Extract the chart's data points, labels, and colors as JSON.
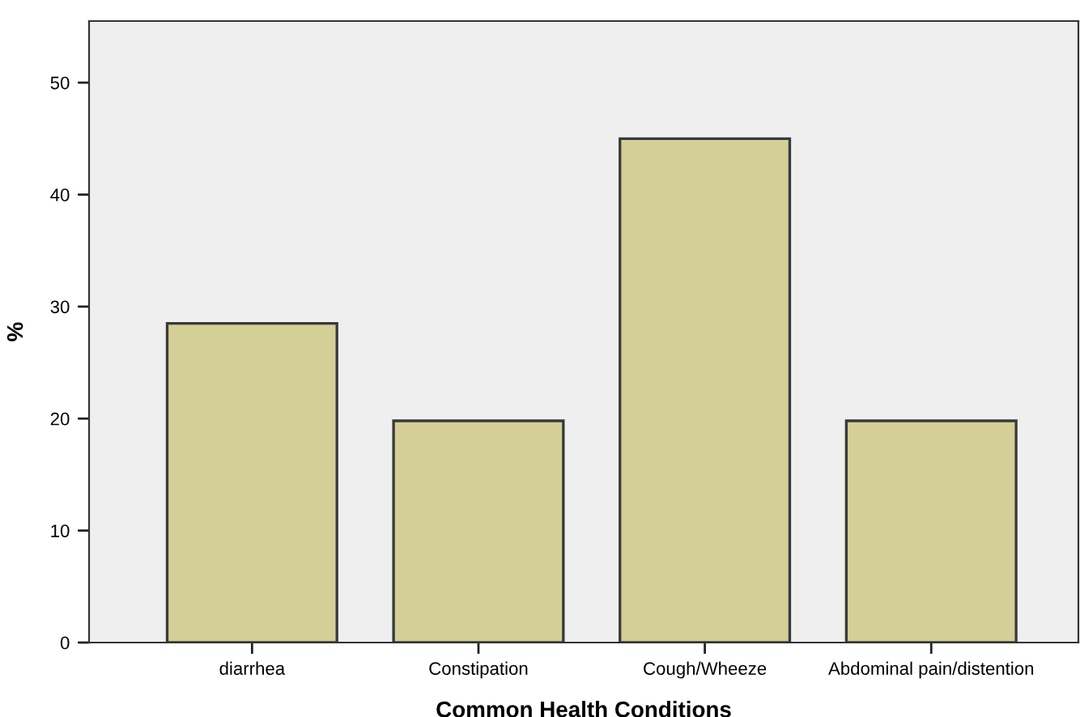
{
  "chart_data": {
    "type": "bar",
    "xlabel": "Common Health Conditions",
    "ylabel": "%",
    "categories": [
      "diarrhea",
      "Constipation",
      "Cough/Wheeze",
      "Abdominal pain/distention"
    ],
    "values": [
      28.5,
      19.8,
      45.0,
      19.8
    ],
    "color": "#d3cf97",
    "ylim": [
      0,
      55.5
    ],
    "yticks": [
      0,
      10,
      20,
      30,
      40,
      50
    ],
    "grid": false
  }
}
